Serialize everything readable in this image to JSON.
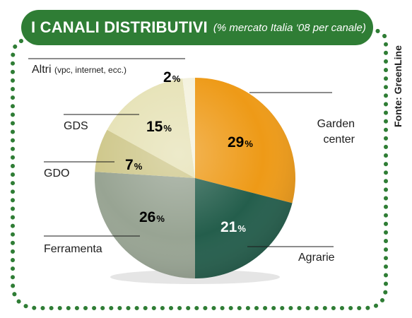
{
  "header": {
    "title": "I CANALI DISTRIBUTIVI",
    "subtitle": "(% mercato Italia ‘08 per canale)"
  },
  "source": "Fonte: GreenLine",
  "colors": {
    "header": "#2f7d35",
    "border": "#2f7d35",
    "garden_center": "#ee9a17",
    "agrarie": "#245e4c",
    "ferramenta": "#98a493",
    "gdo": "#cfc88c",
    "gds": "#e6e2b6",
    "altri": "#f4f2de"
  },
  "chart_data": {
    "type": "pie",
    "start_angle_deg": 0,
    "direction": "clockwise",
    "slices": [
      {
        "label": "Garden center",
        "value": 29,
        "display": "29",
        "unit": "%",
        "color": "#ee9a17",
        "text_color": "#1a1a1a"
      },
      {
        "label": "Agrarie",
        "value": 21,
        "display": "21",
        "unit": "%",
        "color": "#245e4c",
        "text_color": "#ffffff"
      },
      {
        "label": "Ferramenta",
        "value": 26,
        "display": "26",
        "unit": "%",
        "color": "#98a493",
        "text_color": "#1a1a1a"
      },
      {
        "label": "GDO",
        "value": 7,
        "display": "7",
        "unit": "%",
        "color": "#cfc88c",
        "text_color": "#1a1a1a"
      },
      {
        "label": "GDS",
        "value": 15,
        "display": "15",
        "unit": "%",
        "color": "#e6e2b6",
        "text_color": "#1a1a1a"
      },
      {
        "label": "Altri",
        "value": 2,
        "display": "2",
        "unit": "%",
        "color": "#f4f2de",
        "text_color": "#1a1a1a",
        "sublabel": "(vpc, internet, ecc.)"
      }
    ]
  }
}
